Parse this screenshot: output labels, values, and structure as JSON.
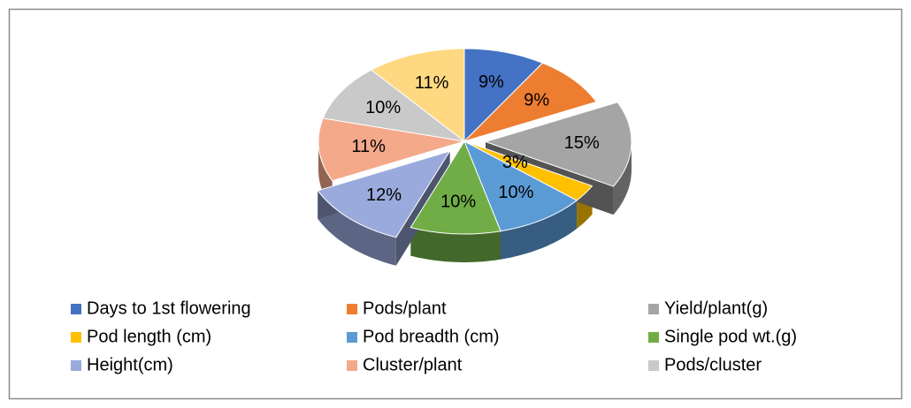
{
  "chart_data": {
    "type": "pie",
    "categories": [
      "Days to 1st flowering",
      "Pods/plant",
      "Yield/plant(g)",
      "Pod length (cm)",
      "Pod breadth (cm)",
      "Single pod wt.(g)",
      "Height(cm)",
      "Cluster/plant",
      "Pods/cluster",
      null
    ],
    "values": [
      9,
      9,
      15,
      3,
      10,
      10,
      12,
      11,
      10,
      11
    ],
    "value_labels": [
      "9%",
      "9%",
      "15%",
      "3%",
      "10%",
      "10%",
      "12%",
      "11%",
      "10%",
      "11%"
    ],
    "colors": [
      "#4472c4",
      "#ed7d31",
      "#a5a5a5",
      "#ffc000",
      "#5b9bd5",
      "#70ad47",
      "#9aaadc",
      "#f4a98a",
      "#c9c9c9",
      "#ffd982"
    ],
    "legend": "bottom"
  }
}
